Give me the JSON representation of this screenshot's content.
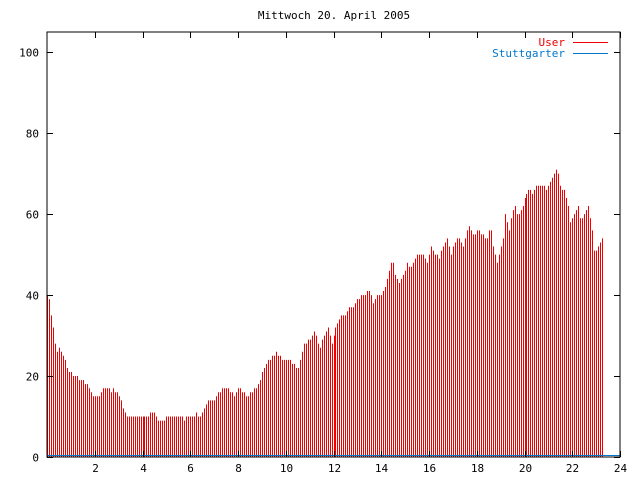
{
  "chart_data": {
    "type": "bar",
    "title": "Mittwoch 20. April 2005",
    "xlabel": "",
    "ylabel": "",
    "xlim": [
      0,
      24
    ],
    "ylim": [
      0,
      105
    ],
    "x_ticks": [
      2,
      4,
      6,
      8,
      10,
      12,
      14,
      16,
      18,
      20,
      22,
      24
    ],
    "y_ticks": [
      0,
      20,
      40,
      60,
      80,
      100
    ],
    "grid": false,
    "legend_position": "top-right",
    "colors": {
      "user": "#ee0000",
      "stuttgarter": "#0077cc",
      "axis": "#000000"
    },
    "series": [
      {
        "name": "User",
        "color": "#ee0000",
        "bin_minutes": 5,
        "x_start": 0,
        "values": [
          40,
          39,
          35,
          32,
          28,
          26,
          27,
          26,
          25,
          24,
          22,
          21,
          21,
          20,
          20,
          20,
          19,
          19,
          19,
          18,
          18,
          17,
          16,
          15,
          15,
          15,
          15,
          16,
          17,
          17,
          17,
          17,
          16,
          17,
          16,
          16,
          15,
          14,
          12,
          11,
          10,
          10,
          10,
          10,
          10,
          10,
          10,
          10,
          10,
          10,
          10,
          10,
          11,
          11,
          11,
          10,
          9,
          9,
          9,
          9,
          10,
          10,
          10,
          10,
          10,
          10,
          10,
          10,
          10,
          9,
          10,
          10,
          10,
          10,
          10,
          11,
          10,
          10,
          11,
          12,
          13,
          14,
          14,
          14,
          14,
          15,
          16,
          16,
          17,
          17,
          17,
          17,
          16,
          16,
          15,
          16,
          17,
          17,
          16,
          16,
          15,
          15,
          16,
          16,
          17,
          17,
          18,
          19,
          21,
          22,
          23,
          24,
          24,
          25,
          25,
          26,
          25,
          25,
          24,
          24,
          24,
          24,
          24,
          23,
          23,
          22,
          22,
          24,
          26,
          28,
          28,
          29,
          29,
          30,
          31,
          30,
          28,
          27,
          29,
          30,
          31,
          32,
          30,
          28,
          30,
          32,
          33,
          34,
          35,
          35,
          35,
          36,
          37,
          37,
          37,
          38,
          39,
          39,
          40,
          40,
          40,
          41,
          41,
          40,
          38,
          39,
          40,
          40,
          40,
          41,
          42,
          44,
          46,
          48,
          48,
          45,
          44,
          43,
          44,
          45,
          46,
          48,
          47,
          47,
          48,
          49,
          50,
          50,
          50,
          50,
          49,
          48,
          50,
          52,
          51,
          50,
          50,
          49,
          51,
          52,
          53,
          54,
          52,
          50,
          52,
          53,
          54,
          54,
          53,
          52,
          54,
          56,
          57,
          56,
          55,
          55,
          56,
          56,
          55,
          55,
          54,
          54,
          56,
          56,
          52,
          50,
          48,
          50,
          52,
          54,
          60,
          58,
          56,
          59,
          61,
          62,
          60,
          60,
          61,
          62,
          64,
          65,
          66,
          66,
          65,
          66,
          67,
          67,
          67,
          67,
          67,
          66,
          67,
          68,
          69,
          70,
          71,
          70,
          67,
          66,
          66,
          64,
          62,
          58,
          59,
          60,
          61,
          62,
          59,
          59,
          60,
          61,
          62,
          59,
          56,
          51,
          51,
          52,
          53,
          54
        ]
      },
      {
        "name": "Stuttgarter",
        "color": "#0077cc",
        "values": [
          0
        ]
      }
    ]
  }
}
